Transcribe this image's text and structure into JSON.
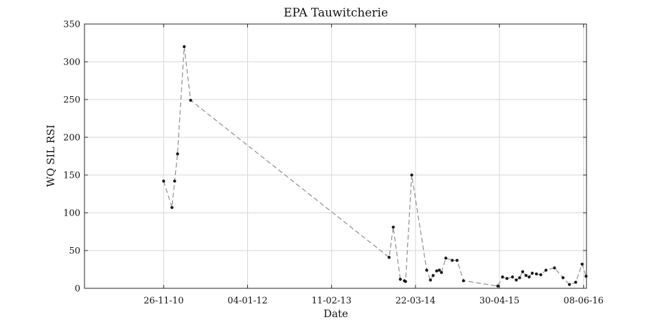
{
  "chart_data": {
    "type": "line",
    "title": "EPA Tauwitcherie",
    "xlabel": "Date",
    "ylabel": "WQ SIL RSI",
    "ylim": [
      0,
      350
    ],
    "xlim": [
      "2009-11-10",
      "2016-06-22"
    ],
    "yticks": [
      0,
      50,
      100,
      150,
      200,
      250,
      300,
      350
    ],
    "xticks": [
      {
        "date": "2010-11-26",
        "label": "26-11-10"
      },
      {
        "date": "2012-01-04",
        "label": "04-01-12"
      },
      {
        "date": "2013-02-11",
        "label": "11-02-13"
      },
      {
        "date": "2014-03-22",
        "label": "22-03-14"
      },
      {
        "date": "2015-04-30",
        "label": "30-04-15"
      },
      {
        "date": "2016-06-08",
        "label": "08-06-16"
      }
    ],
    "grid": true,
    "line_style": "dashed",
    "line_color": "#8c8c8c",
    "marker_color": "#1a1a1a",
    "series": [
      {
        "x": [
          "2010-11-26",
          "2011-01-05",
          "2011-01-18",
          "2011-02-01",
          "2011-03-05",
          "2011-04-05",
          "2013-11-15",
          "2013-12-05",
          "2014-01-08",
          "2014-01-28",
          "2014-02-02",
          "2014-03-04",
          "2014-05-15",
          "2014-06-02",
          "2014-06-15",
          "2014-07-02",
          "2014-07-15",
          "2014-07-25",
          "2014-08-15",
          "2014-09-15",
          "2014-10-08",
          "2014-11-08",
          "2015-04-22",
          "2015-05-15",
          "2015-06-05",
          "2015-07-02",
          "2015-07-20",
          "2015-08-05",
          "2015-08-20",
          "2015-09-05",
          "2015-09-20",
          "2015-10-05",
          "2015-10-25",
          "2015-11-15",
          "2015-12-10",
          "2016-01-20",
          "2016-03-01",
          "2016-04-01",
          "2016-05-01",
          "2016-06-01",
          "2016-06-20"
        ],
        "y": [
          142,
          107,
          142,
          178,
          320,
          249,
          41,
          81,
          12,
          10,
          9,
          150,
          24,
          11,
          17,
          23,
          24,
          21,
          40,
          37,
          37,
          10,
          3,
          15,
          13,
          15,
          11,
          14,
          22,
          17,
          15,
          20,
          19,
          18,
          24,
          27,
          14,
          5,
          8,
          32,
          16
        ]
      }
    ]
  }
}
